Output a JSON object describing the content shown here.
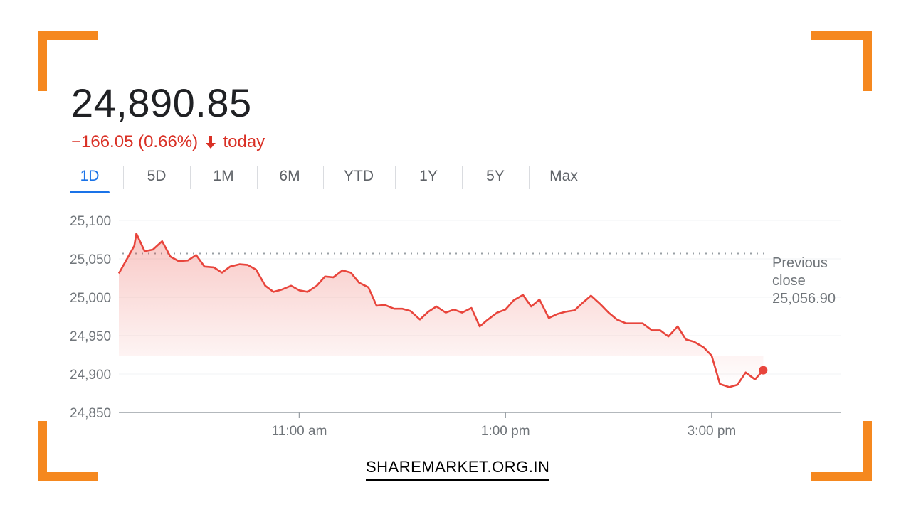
{
  "header": {
    "price": "24,890.85",
    "change": "−166.05 (0.66%)",
    "change_suffix": "today",
    "change_direction_icon": "arrow-down-icon",
    "change_color": "#d93025"
  },
  "tabs": [
    {
      "label": "1D",
      "active": true
    },
    {
      "label": "5D",
      "active": false
    },
    {
      "label": "1M",
      "active": false
    },
    {
      "label": "6M",
      "active": false
    },
    {
      "label": "YTD",
      "active": false
    },
    {
      "label": "1Y",
      "active": false
    },
    {
      "label": "5Y",
      "active": false
    },
    {
      "label": "Max",
      "active": false
    }
  ],
  "brand": "SHAREMARKET.ORG.IN",
  "colors": {
    "accent": "#1a73e8",
    "line": "#e8453c",
    "corners": "#f5881f"
  },
  "chart_data": {
    "type": "line",
    "x_unit": "hours",
    "xlim": [
      9.25,
      16.25
    ],
    "ylim": [
      24850,
      25100
    ],
    "yticks": [
      {
        "value": 25100,
        "label": "25,100"
      },
      {
        "value": 25050,
        "label": "25,050"
      },
      {
        "value": 25000,
        "label": "25,000"
      },
      {
        "value": 24950,
        "label": "24,950"
      },
      {
        "value": 24900,
        "label": "24,900"
      },
      {
        "value": 24850,
        "label": "24,850"
      }
    ],
    "xticks": [
      {
        "value": 11,
        "label": "11:00 am"
      },
      {
        "value": 13,
        "label": "1:00 pm"
      },
      {
        "value": 15,
        "label": "3:00 pm"
      }
    ],
    "grid": true,
    "reference_line": {
      "value": 25056.9,
      "label_lines": [
        "Previous",
        "close",
        "25,056.90"
      ]
    },
    "series": [
      {
        "x": [
          9.25,
          9.4,
          9.42,
          9.5,
          9.58,
          9.67,
          9.75,
          9.83,
          9.92,
          10.0,
          10.08,
          10.17,
          10.25,
          10.33,
          10.42,
          10.5,
          10.58,
          10.67,
          10.75,
          10.83,
          10.92,
          11.0,
          11.08,
          11.17,
          11.25,
          11.33,
          11.42,
          11.5,
          11.58,
          11.67,
          11.75,
          11.83,
          11.92,
          12.0,
          12.08,
          12.17,
          12.25,
          12.33,
          12.42,
          12.5,
          12.58,
          12.67,
          12.75,
          12.83,
          12.92,
          13.0,
          13.08,
          13.17,
          13.25,
          13.33,
          13.42,
          13.5,
          13.58,
          13.67,
          13.75,
          13.83,
          13.92,
          14.0,
          14.08,
          14.17,
          14.25,
          14.33,
          14.42,
          14.5,
          14.58,
          14.67,
          14.75,
          14.83,
          14.92,
          15.0,
          15.08,
          15.17,
          15.25,
          15.33,
          15.42,
          15.5
        ],
        "y": [
          25031,
          25067,
          25083,
          25060,
          25062,
          25073,
          25053,
          25047,
          25048,
          25055,
          25040,
          25039,
          25032,
          25040,
          25043,
          25042,
          25036,
          25015,
          25007,
          25010,
          25015,
          25009,
          25007,
          25015,
          25027,
          25026,
          25035,
          25032,
          25019,
          25013,
          24989,
          24990,
          24985,
          24985,
          24982,
          24971,
          24981,
          24988,
          24980,
          24984,
          24980,
          24986,
          24962,
          24971,
          24980,
          24984,
          24996,
          25003,
          24988,
          24997,
          24973,
          24978,
          24981,
          24983,
          24993,
          25002,
          24991,
          24980,
          24971,
          24966,
          24966,
          24966,
          24957,
          24957,
          24949,
          24962,
          24945,
          24942,
          24935,
          24924,
          24887,
          24883,
          24886,
          24902,
          24893,
          24905
        ]
      }
    ]
  }
}
